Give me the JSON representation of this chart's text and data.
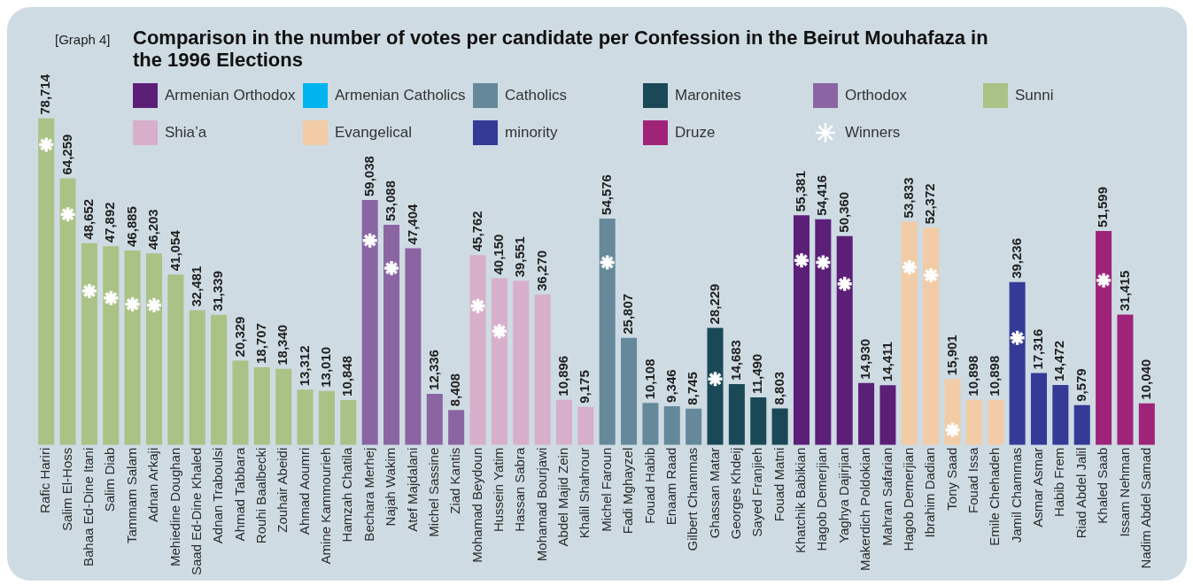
{
  "chart_data": {
    "type": "bar",
    "title": "Comparison in the number of votes per candidate per Confession in the Beirut Mouhafaza in the  1996 Elections",
    "annotations": [
      "[Graph 4]"
    ],
    "categories": [
      "Rafic Hariri",
      "Salim El-Hoss",
      "Bahaa Ed-Dine Itani",
      "Salim Diab",
      "Tammam Salam",
      "Adnan Arkaji",
      "Mehiedine Doughan",
      "Saad Ed-Dine Khaled",
      "Adnan Traboulsi",
      "Ahmad Tabbara",
      "Rouhi Baalbecki",
      "Zouhair Abeidi",
      "Ahmad Aoumri",
      "Amine Kammourieh",
      "Hamzah Chatila",
      "Bechara Merhej",
      "Najah Wakim",
      "Atef Majdalani",
      "Michel Sassine",
      "Ziad Kantis",
      "Mohamad Beydoun",
      "Hussein Yatim",
      "Hassan Sabra",
      "Mohamad Bourjawi",
      "Abdel Majid Zein",
      "Khalil Shahrour",
      "Michel Faroun",
      "Fadi Mghayzel",
      "Fouad Habib",
      "Enaam Raad",
      "Gilbert Chammas",
      "Ghassan Matar",
      "Georges Khdeij",
      "Sayed Franjieh",
      "Fouad Matni",
      "Khatchik Babikian",
      "Hagob Demerjian",
      "Yaghya Dajirjian",
      "Makerdich Poldokian",
      "Mahran Safarian",
      "Hagob Demerjian",
      "Ibrahim Dadian",
      "Tony Saad",
      "Fouad Issa",
      "Emile Chehadeh",
      "Jamil Chammas",
      "Asmar Asmar",
      "Habib Frem",
      "Riad Abdel Jalil",
      "Khaled Saab",
      "Issam Nehman",
      "Nadim Abdel Samad"
    ],
    "series": [
      {
        "name": "Armenian Orthodox",
        "color": "#5c1f78",
        "values": [
          null,
          null,
          null,
          null,
          null,
          null,
          null,
          null,
          null,
          null,
          null,
          null,
          null,
          null,
          null,
          null,
          null,
          null,
          null,
          null,
          null,
          null,
          null,
          null,
          null,
          null,
          null,
          null,
          null,
          null,
          null,
          null,
          null,
          null,
          null,
          55381,
          54416,
          50360,
          14930,
          14411,
          null,
          null,
          null,
          null,
          null,
          null,
          null,
          null,
          null,
          null,
          null,
          null
        ],
        "value_labels": [
          null,
          null,
          null,
          null,
          null,
          null,
          null,
          null,
          null,
          null,
          null,
          null,
          null,
          null,
          null,
          null,
          null,
          null,
          null,
          null,
          null,
          null,
          null,
          null,
          null,
          null,
          null,
          null,
          null,
          null,
          null,
          null,
          null,
          null,
          null,
          "55,381",
          "54,416",
          "50,360",
          "14,930",
          "14,411",
          null,
          null,
          null,
          null,
          null,
          null,
          null,
          null,
          null,
          null,
          null,
          null
        ]
      },
      {
        "name": "Armenian Catholics",
        "color": "#00b5ef",
        "values": [
          null,
          null,
          null,
          null,
          null,
          null,
          null,
          null,
          null,
          null,
          null,
          null,
          null,
          null,
          null,
          null,
          null,
          null,
          null,
          null,
          null,
          null,
          null,
          null,
          null,
          null,
          null,
          null,
          null,
          null,
          null,
          null,
          null,
          null,
          null,
          null,
          null,
          null,
          null,
          null,
          null,
          null,
          null,
          null,
          null,
          null,
          null,
          null,
          null,
          null,
          null,
          null
        ]
      },
      {
        "name": "Catholics",
        "color": "#65899a",
        "values": [
          null,
          null,
          null,
          null,
          null,
          null,
          null,
          null,
          null,
          null,
          null,
          null,
          null,
          null,
          null,
          null,
          null,
          null,
          null,
          null,
          null,
          null,
          null,
          null,
          null,
          null,
          54576,
          25807,
          10108,
          9346,
          8745,
          null,
          null,
          null,
          null,
          null,
          null,
          null,
          null,
          null,
          null,
          null,
          null,
          null,
          null,
          null,
          null,
          null,
          null,
          null,
          null,
          null
        ],
        "value_labels": [
          null,
          null,
          null,
          null,
          null,
          null,
          null,
          null,
          null,
          null,
          null,
          null,
          null,
          null,
          null,
          null,
          null,
          null,
          null,
          null,
          null,
          null,
          null,
          null,
          null,
          null,
          "54,576",
          "25,807",
          "10,108",
          "9,346",
          "8,745",
          null,
          null,
          null,
          null,
          null,
          null,
          null,
          null,
          null,
          null,
          null,
          null,
          null,
          null,
          null,
          null,
          null,
          null,
          null,
          null,
          null
        ]
      },
      {
        "name": "Maronites",
        "color": "#1b4857",
        "values": [
          null,
          null,
          null,
          null,
          null,
          null,
          null,
          null,
          null,
          null,
          null,
          null,
          null,
          null,
          null,
          null,
          null,
          null,
          null,
          null,
          null,
          null,
          null,
          null,
          null,
          null,
          null,
          null,
          null,
          null,
          null,
          28229,
          14683,
          11490,
          8803,
          null,
          null,
          null,
          null,
          null,
          null,
          null,
          null,
          null,
          null,
          null,
          null,
          null,
          null,
          null,
          null,
          null
        ],
        "value_labels": [
          null,
          null,
          null,
          null,
          null,
          null,
          null,
          null,
          null,
          null,
          null,
          null,
          null,
          null,
          null,
          null,
          null,
          null,
          null,
          null,
          null,
          null,
          null,
          null,
          null,
          null,
          null,
          null,
          null,
          null,
          null,
          "28,229",
          "14,683",
          "11,490",
          "8,803",
          null,
          null,
          null,
          null,
          null,
          null,
          null,
          null,
          null,
          null,
          null,
          null,
          null,
          null,
          null,
          null,
          null
        ]
      },
      {
        "name": "Orthodox",
        "color": "#8b65a3",
        "values": [
          null,
          null,
          null,
          null,
          null,
          null,
          null,
          null,
          null,
          null,
          null,
          null,
          null,
          null,
          null,
          59038,
          53088,
          47404,
          12336,
          8408,
          null,
          null,
          null,
          null,
          null,
          null,
          null,
          null,
          null,
          null,
          null,
          null,
          null,
          null,
          null,
          null,
          null,
          null,
          null,
          null,
          null,
          null,
          null,
          null,
          null,
          null,
          null,
          null,
          null,
          null,
          null,
          null
        ],
        "value_labels": [
          null,
          null,
          null,
          null,
          null,
          null,
          null,
          null,
          null,
          null,
          null,
          null,
          null,
          null,
          null,
          "59,038",
          "53,088",
          "47,404",
          "12,336",
          "8,408",
          null,
          null,
          null,
          null,
          null,
          null,
          null,
          null,
          null,
          null,
          null,
          null,
          null,
          null,
          null,
          null,
          null,
          null,
          null,
          null,
          null,
          null,
          null,
          null,
          null,
          null,
          null,
          null,
          null,
          null,
          null,
          null
        ]
      },
      {
        "name": "Sunni",
        "color": "#aac285",
        "values": [
          78714,
          64259,
          48652,
          47892,
          46885,
          46203,
          41054,
          32481,
          31339,
          20329,
          18707,
          18340,
          13312,
          13010,
          10848,
          null,
          null,
          null,
          null,
          null,
          null,
          null,
          null,
          null,
          null,
          null,
          null,
          null,
          null,
          null,
          null,
          null,
          null,
          null,
          null,
          null,
          null,
          null,
          null,
          null,
          null,
          null,
          null,
          null,
          null,
          null,
          null,
          null,
          null,
          null,
          null,
          null
        ],
        "value_labels": [
          "78,714",
          "64,259",
          "48,652",
          "47,892",
          "46,885",
          "46,203",
          "41,054",
          "32,481",
          "31,339",
          "20,329",
          "18,707",
          "18,340",
          "13,312",
          "13,010",
          "10,848",
          null,
          null,
          null,
          null,
          null,
          null,
          null,
          null,
          null,
          null,
          null,
          null,
          null,
          null,
          null,
          null,
          null,
          null,
          null,
          null,
          null,
          null,
          null,
          null,
          null,
          null,
          null,
          null,
          null,
          null,
          null,
          null,
          null,
          null,
          null,
          null,
          null
        ]
      },
      {
        "name": "Shia’a",
        "color": "#d8afcb",
        "values": [
          null,
          null,
          null,
          null,
          null,
          null,
          null,
          null,
          null,
          null,
          null,
          null,
          null,
          null,
          null,
          null,
          null,
          null,
          null,
          null,
          45762,
          40150,
          39551,
          36270,
          10896,
          9175,
          null,
          null,
          null,
          null,
          null,
          null,
          null,
          null,
          null,
          null,
          null,
          null,
          null,
          null,
          null,
          null,
          null,
          null,
          null,
          null,
          null,
          null,
          null,
          null,
          null,
          null
        ],
        "value_labels": [
          null,
          null,
          null,
          null,
          null,
          null,
          null,
          null,
          null,
          null,
          null,
          null,
          null,
          null,
          null,
          null,
          null,
          null,
          null,
          null,
          "45,762",
          "40,150",
          "39,551",
          "36,270",
          "10,896",
          "9,175",
          null,
          null,
          null,
          null,
          null,
          null,
          null,
          null,
          null,
          null,
          null,
          null,
          null,
          null,
          null,
          null,
          null,
          null,
          null,
          null,
          null,
          null,
          null,
          null,
          null,
          null
        ]
      },
      {
        "name": "Evangelical",
        "color": "#f2cca6",
        "values": [
          null,
          null,
          null,
          null,
          null,
          null,
          null,
          null,
          null,
          null,
          null,
          null,
          null,
          null,
          null,
          null,
          null,
          null,
          null,
          null,
          null,
          null,
          null,
          null,
          null,
          null,
          null,
          null,
          null,
          null,
          null,
          null,
          null,
          null,
          null,
          null,
          null,
          null,
          null,
          null,
          53833,
          52372,
          15901,
          10898,
          10898,
          null,
          null,
          null,
          null,
          null,
          null,
          null
        ],
        "value_labels": [
          null,
          null,
          null,
          null,
          null,
          null,
          null,
          null,
          null,
          null,
          null,
          null,
          null,
          null,
          null,
          null,
          null,
          null,
          null,
          null,
          null,
          null,
          null,
          null,
          null,
          null,
          null,
          null,
          null,
          null,
          null,
          null,
          null,
          null,
          null,
          null,
          null,
          null,
          null,
          null,
          "53,833",
          "52,372",
          "15,901",
          "10,898",
          "10,898",
          null,
          null,
          null,
          null,
          null,
          null,
          null
        ]
      },
      {
        "name": "minority",
        "color": "#343a96",
        "values": [
          null,
          null,
          null,
          null,
          null,
          null,
          null,
          null,
          null,
          null,
          null,
          null,
          null,
          null,
          null,
          null,
          null,
          null,
          null,
          null,
          null,
          null,
          null,
          null,
          null,
          null,
          null,
          null,
          null,
          null,
          null,
          null,
          null,
          null,
          null,
          null,
          null,
          null,
          null,
          null,
          null,
          null,
          null,
          null,
          null,
          39236,
          17316,
          14472,
          9579,
          null,
          null,
          null
        ],
        "value_labels": [
          null,
          null,
          null,
          null,
          null,
          null,
          null,
          null,
          null,
          null,
          null,
          null,
          null,
          null,
          null,
          null,
          null,
          null,
          null,
          null,
          null,
          null,
          null,
          null,
          null,
          null,
          null,
          null,
          null,
          null,
          null,
          null,
          null,
          null,
          null,
          null,
          null,
          null,
          null,
          null,
          null,
          null,
          null,
          null,
          null,
          "39,236",
          "17,316",
          "14,472",
          "9,579",
          null,
          null,
          null
        ]
      },
      {
        "name": "Druze",
        "color": "#9e2379",
        "values": [
          null,
          null,
          null,
          null,
          null,
          null,
          null,
          null,
          null,
          null,
          null,
          null,
          null,
          null,
          null,
          null,
          null,
          null,
          null,
          null,
          null,
          null,
          null,
          null,
          null,
          null,
          null,
          null,
          null,
          null,
          null,
          null,
          null,
          null,
          null,
          null,
          null,
          null,
          null,
          null,
          null,
          null,
          null,
          null,
          null,
          null,
          null,
          null,
          null,
          51599,
          31415,
          10040
        ],
        "value_labels": [
          null,
          null,
          null,
          null,
          null,
          null,
          null,
          null,
          null,
          null,
          null,
          null,
          null,
          null,
          null,
          null,
          null,
          null,
          null,
          null,
          null,
          null,
          null,
          null,
          null,
          null,
          null,
          null,
          null,
          null,
          null,
          null,
          null,
          null,
          null,
          null,
          null,
          null,
          null,
          null,
          null,
          null,
          null,
          null,
          null,
          null,
          null,
          null,
          null,
          "51,599",
          "31,415",
          "10,040"
        ]
      },
      {
        "name": "Winners",
        "type": "scatter",
        "marker": "cross",
        "color": "#ffffff",
        "values": [
          72400,
          55600,
          37100,
          35400,
          33900,
          33700,
          null,
          null,
          null,
          null,
          null,
          null,
          null,
          null,
          null,
          49300,
          42600,
          null,
          null,
          null,
          33500,
          27400,
          null,
          null,
          null,
          null,
          44000,
          null,
          null,
          null,
          null,
          15900,
          null,
          null,
          null,
          44500,
          44000,
          38800,
          null,
          null,
          42800,
          40900,
          3600,
          null,
          null,
          25800,
          null,
          null,
          null,
          39700,
          null,
          null
        ]
      }
    ],
    "legend": "top",
    "grid": false
  }
}
